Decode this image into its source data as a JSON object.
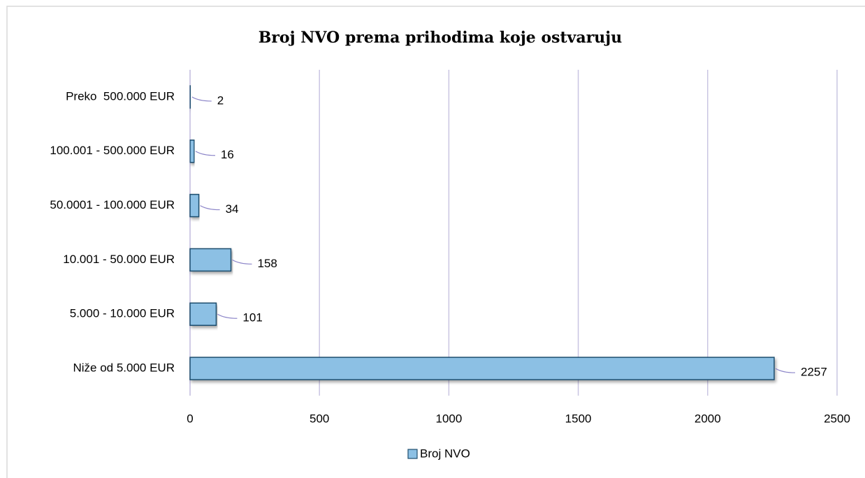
{
  "chart_data": {
    "type": "bar",
    "orientation": "horizontal",
    "title": "Broj NVO prema prihodima koje ostvaruju",
    "categories": [
      "Niže od 5.000 EUR",
      "5.000 - 10.000 EUR",
      "10.001 - 50.000 EUR",
      "50.0001 - 100.000 EUR",
      "100.001 - 500.000 EUR",
      "Preko  500.000 EUR"
    ],
    "series": [
      {
        "name": "Broj NVO",
        "color": "#8cc0e4",
        "values": [
          2257,
          101,
          158,
          34,
          16,
          2
        ]
      }
    ],
    "xlim": [
      0,
      2500
    ],
    "xticks": [
      0,
      500,
      1000,
      1500,
      2000,
      2500
    ],
    "grid": true,
    "legend": "bottom"
  }
}
